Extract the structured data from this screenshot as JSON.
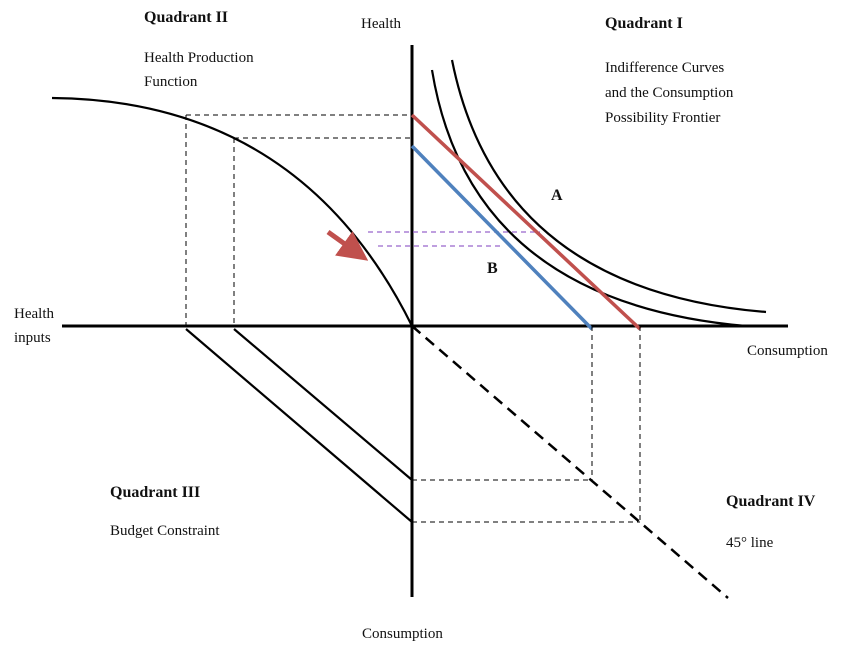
{
  "axes": {
    "health_top": "Health",
    "health_inputs_line1": "Health",
    "health_inputs_line2": "inputs",
    "consumption_right": "Consumption",
    "consumption_bottom": "Consumption"
  },
  "quadrants": {
    "q1": {
      "title": "Quadrant I",
      "desc_line1": "Indifference Curves",
      "desc_line2": "and the Consumption",
      "desc_line3": "Possibility Frontier"
    },
    "q2": {
      "title": "Quadrant II",
      "desc_line1": "Health Production",
      "desc_line2": "Function"
    },
    "q3": {
      "title": "Quadrant III",
      "desc_line1": "Budget Constraint"
    },
    "q4": {
      "title": "Quadrant IV",
      "desc_line1": "45° line"
    }
  },
  "points": {
    "a": "A",
    "b": "B"
  },
  "colors": {
    "axis": "#000000",
    "red_frontier": "#c0504d",
    "blue_frontier": "#4f81bd",
    "purple_dashed": "#9966cc",
    "arrow": "#c0504d"
  }
}
